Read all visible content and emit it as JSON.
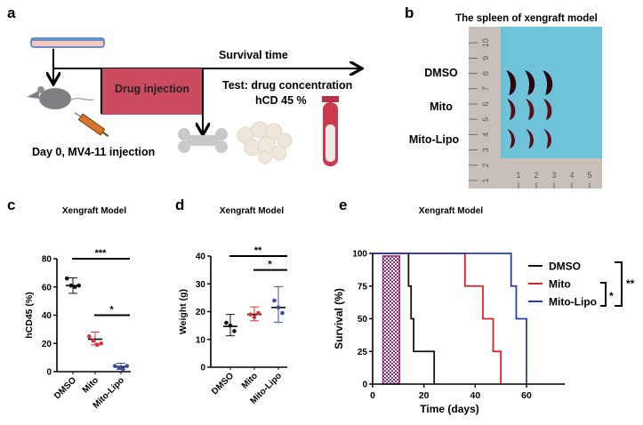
{
  "panel_a": {
    "label": "a",
    "timeline_label": "Survival time",
    "drug_box_label": "Drug injection",
    "test_label": "Test:  drug concentration",
    "test_sub_label": "hCD 45 %",
    "day0_label": "Day 0, MV4-11 injection",
    "colors": {
      "drug_box": "#cc4b5e",
      "tube": "#c93a4e",
      "mouse": "#7d7f82",
      "syringe": "#d9742c",
      "bone": "#c9c9c9",
      "cells": "#efe7dc"
    }
  },
  "panel_b": {
    "label": "b",
    "title": "The spleen of xengraft model",
    "rows": [
      "DMSO",
      "Mito",
      "Mito-Lipo"
    ],
    "ruler_vertical_marks": [
      "1",
      "2",
      "3",
      "4",
      "5",
      "6",
      "7",
      "8",
      "9",
      "10"
    ],
    "ruler_horizontal_marks": [
      "1",
      "2",
      "3",
      "4",
      "5"
    ],
    "colors": {
      "cloth": "#6fc3d8",
      "ruler": "#c7bfb8",
      "spleen": "#5a0f1e"
    }
  },
  "chart_data": [
    {
      "panel": "c",
      "type": "scatter",
      "title": "Xengraft Model",
      "ylabel": "hCD45 (%)",
      "categories": [
        "DMSO",
        "Mito",
        "Mito-Lipo"
      ],
      "ylim": [
        0,
        80
      ],
      "yticks": [
        "0",
        "20",
        "40",
        "60",
        "80"
      ],
      "colors": [
        "#111111",
        "#d9303e",
        "#3a4fa0"
      ],
      "points": [
        [
          66,
          61,
          60,
          61
        ],
        [
          25,
          22,
          19,
          20
        ],
        [
          4,
          3,
          2,
          4
        ]
      ],
      "mean": [
        61,
        23,
        3.5
      ],
      "error": [
        [
          55.5,
          66.5
        ],
        [
          19,
          28
        ],
        [
          1.5,
          6
        ]
      ],
      "significance": [
        {
          "from": "DMSO",
          "to": "Mito-Lipo",
          "y": 80,
          "label": "***"
        },
        {
          "from": "Mito",
          "to": "Mito-Lipo",
          "y": 40,
          "label": "*"
        }
      ]
    },
    {
      "panel": "d",
      "type": "scatter",
      "title": "Xengraft Model",
      "ylabel": "Weight (g)",
      "categories": [
        "DMSO",
        "Mito",
        "Mito-Lipo"
      ],
      "ylim": [
        0,
        40
      ],
      "yticks": [
        "0",
        "10",
        "20",
        "30",
        "40"
      ],
      "colors": [
        "#111111",
        "#d9303e",
        "#3a4fa0"
      ],
      "points": [
        [
          16,
          15,
          13
        ],
        [
          19,
          18,
          19.5
        ],
        [
          24,
          21.5,
          19.5
        ]
      ],
      "mean": [
        14.7,
        19,
        21.5
      ],
      "error": [
        [
          11.3,
          19
        ],
        [
          16.7,
          21.7
        ],
        [
          16.2,
          29
        ]
      ],
      "significance": [
        {
          "from": "DMSO",
          "to": "Mito-Lipo",
          "y": 40,
          "label": "**"
        },
        {
          "from": "Mito",
          "to": "Mito-Lipo",
          "y": 35,
          "label": "*"
        }
      ]
    },
    {
      "panel": "e",
      "type": "line",
      "step": true,
      "title": "Xengraft Model",
      "xlabel": "Time  (days)",
      "ylabel": "Survival (%)",
      "xlim": [
        0,
        75
      ],
      "ylim": [
        0,
        100
      ],
      "xticks": [
        "0",
        "20",
        "40",
        "60"
      ],
      "yticks": [
        "0",
        "25",
        "50",
        "75",
        "100"
      ],
      "legend": "right",
      "treatment_window_days": [
        4,
        10.5
      ],
      "treatment_color": "#8b2a7f",
      "series": [
        {
          "name": "DMSO",
          "color": "#111111",
          "x": [
            0,
            14,
            15,
            16,
            24
          ],
          "y": [
            100,
            75,
            50,
            25,
            0
          ]
        },
        {
          "name": "Mito",
          "color": "#e02020",
          "x": [
            0,
            36,
            43,
            47,
            50
          ],
          "y": [
            100,
            75,
            50,
            25,
            0
          ]
        },
        {
          "name": "Mito-Lipo",
          "color": "#2b3fa6",
          "x": [
            0,
            54,
            56,
            60
          ],
          "y": [
            100,
            75,
            50,
            0
          ]
        }
      ],
      "significance": [
        {
          "groups": [
            "Mito",
            "Mito-Lipo"
          ],
          "label": "*"
        },
        {
          "groups": [
            "DMSO",
            "Mito-Lipo"
          ],
          "label": "**"
        }
      ]
    }
  ],
  "panel_labels": {
    "c": "c",
    "d": "d",
    "e": "e"
  }
}
